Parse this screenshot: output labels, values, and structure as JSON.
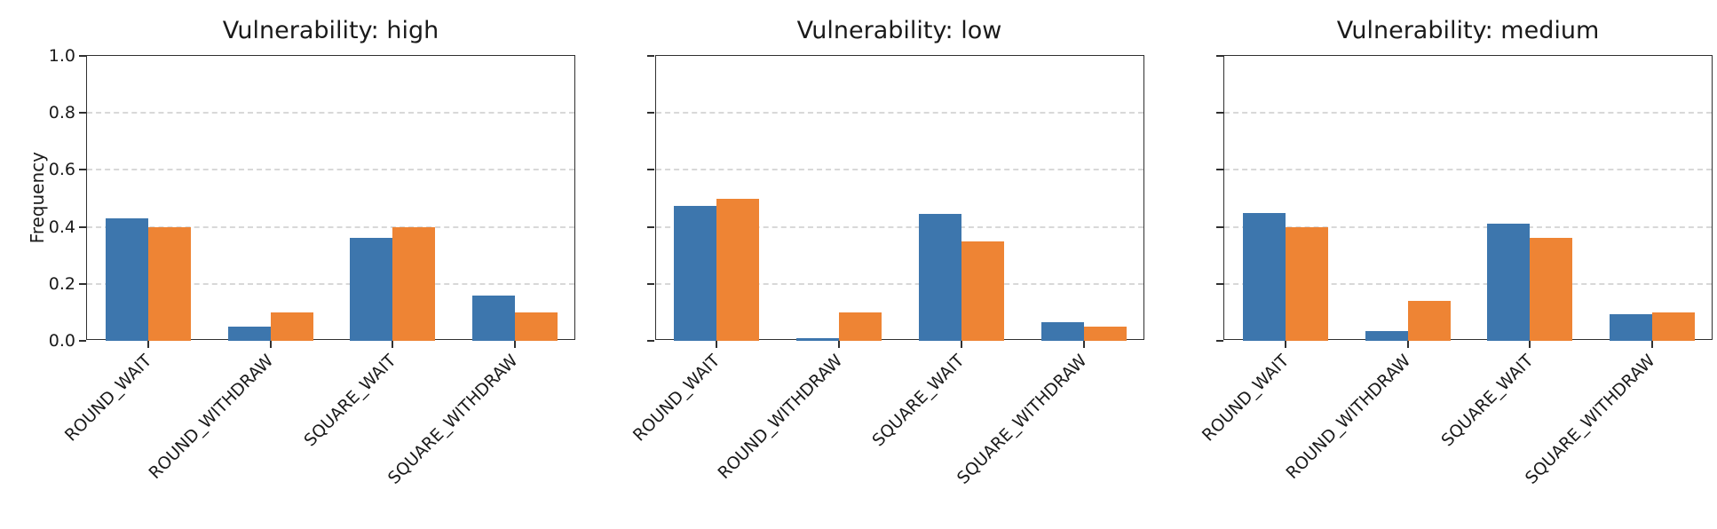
{
  "figure": {
    "background": "#ffffff",
    "axis_color": "#303030",
    "text_color": "#1a1a1a",
    "grid_color": "#d8d8d8",
    "grid_style": "horizontal-dashed",
    "legend": "none"
  },
  "chart_data": [
    {
      "type": "bar",
      "title": "Vulnerability: high",
      "ylabel": "Frequency",
      "categories": [
        "ROUND_WAIT",
        "ROUND_WITHDRAW",
        "SQUARE_WAIT",
        "SQUARE_WITHDRAW"
      ],
      "series": [
        {
          "name": "blue",
          "color": "#3d76ad",
          "values": [
            0.43,
            0.05,
            0.36,
            0.16
          ]
        },
        {
          "name": "orange",
          "color": "#ee8434",
          "values": [
            0.4,
            0.1,
            0.4,
            0.1
          ]
        }
      ],
      "ylim": [
        0,
        1
      ],
      "yticks": [
        "0.0",
        "0.2",
        "0.4",
        "0.6",
        "0.8",
        "1.0"
      ],
      "show_ytick_labels": true
    },
    {
      "type": "bar",
      "title": "Vulnerability: low",
      "ylabel": "",
      "categories": [
        "ROUND_WAIT",
        "ROUND_WITHDRAW",
        "SQUARE_WAIT",
        "SQUARE_WITHDRAW"
      ],
      "series": [
        {
          "name": "blue",
          "color": "#3d76ad",
          "values": [
            0.475,
            0.01,
            0.445,
            0.065
          ]
        },
        {
          "name": "orange",
          "color": "#ee8434",
          "values": [
            0.5,
            0.1,
            0.35,
            0.05
          ]
        }
      ],
      "ylim": [
        0,
        1
      ],
      "yticks": [
        "0.0",
        "0.2",
        "0.4",
        "0.6",
        "0.8",
        "1.0"
      ],
      "show_ytick_labels": false
    },
    {
      "type": "bar",
      "title": "Vulnerability: medium",
      "ylabel": "",
      "categories": [
        "ROUND_WAIT",
        "ROUND_WITHDRAW",
        "SQUARE_WAIT",
        "SQUARE_WITHDRAW"
      ],
      "series": [
        {
          "name": "blue",
          "color": "#3d76ad",
          "values": [
            0.45,
            0.035,
            0.41,
            0.095
          ]
        },
        {
          "name": "orange",
          "color": "#ee8434",
          "values": [
            0.4,
            0.14,
            0.36,
            0.1
          ]
        }
      ],
      "ylim": [
        0,
        1
      ],
      "yticks": [
        "0.0",
        "0.2",
        "0.4",
        "0.6",
        "0.8",
        "1.0"
      ],
      "show_ytick_labels": false
    }
  ]
}
